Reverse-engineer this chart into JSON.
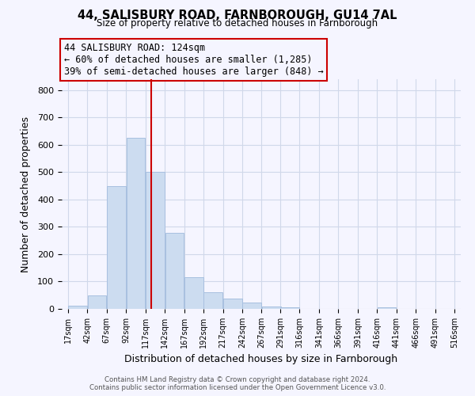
{
  "title": "44, SALISBURY ROAD, FARNBOROUGH, GU14 7AL",
  "subtitle": "Size of property relative to detached houses in Farnborough",
  "xlabel": "Distribution of detached houses by size in Farnborough",
  "ylabel": "Number of detached properties",
  "bar_color": "#ccdcf0",
  "bar_edge_color": "#a8c0e0",
  "vline_x": 124,
  "vline_color": "#cc0000",
  "annotation_line1": "44 SALISBURY ROAD: 124sqm",
  "annotation_line2": "← 60% of detached houses are smaller (1,285)",
  "annotation_line3": "39% of semi-detached houses are larger (848) →",
  "annotation_box_color": "#cc0000",
  "bin_edges": [
    17,
    42,
    67,
    92,
    117,
    142,
    167,
    192,
    217,
    242,
    267,
    291,
    316,
    341,
    366,
    391,
    416,
    441,
    466,
    491,
    516
  ],
  "bin_heights": [
    12,
    50,
    450,
    625,
    500,
    278,
    115,
    60,
    37,
    22,
    8,
    5,
    0,
    0,
    0,
    0,
    5,
    0,
    0,
    0
  ],
  "ylim": [
    0,
    840
  ],
  "yticks": [
    0,
    100,
    200,
    300,
    400,
    500,
    600,
    700,
    800
  ],
  "footer_line1": "Contains HM Land Registry data © Crown copyright and database right 2024.",
  "footer_line2": "Contains public sector information licensed under the Open Government Licence v3.0.",
  "bg_color": "#f5f5ff",
  "grid_color": "#d0d8ea"
}
